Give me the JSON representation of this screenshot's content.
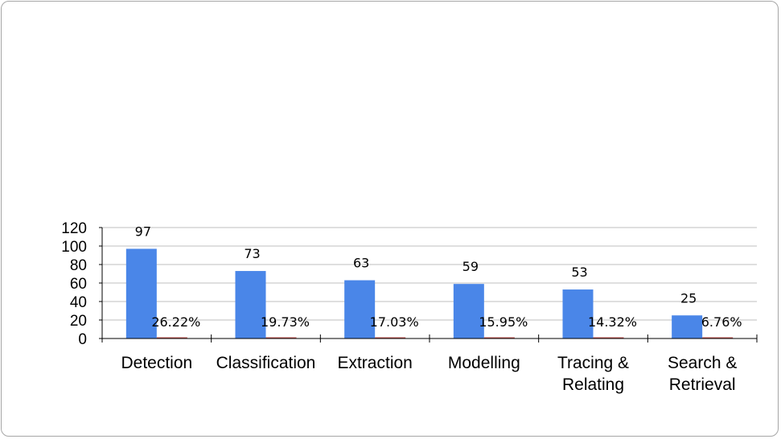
{
  "chart_data": {
    "type": "bar",
    "categories": [
      [
        "Detection"
      ],
      [
        "Classification"
      ],
      [
        "Extraction"
      ],
      [
        "Modelling"
      ],
      [
        "Tracing &",
        "Relating"
      ],
      [
        "Search &",
        "Retrieval"
      ]
    ],
    "series": [
      {
        "values": [
          97,
          73,
          63,
          59,
          53,
          25
        ],
        "labels": [
          "97",
          "73",
          "63",
          "59",
          "53",
          "25"
        ],
        "color": "#4a86e8"
      },
      {
        "values": [
          0.2622,
          0.1973,
          0.1703,
          0.1595,
          0.1432,
          0.0676
        ],
        "labels": [
          "26.22%",
          "19.73%",
          "17.03%",
          "15.95%",
          "14.32%",
          "6.76%"
        ],
        "color": "#c0504d"
      }
    ],
    "yticks": [
      "0",
      "20",
      "40",
      "60",
      "80",
      "100",
      "120"
    ],
    "ylim": [
      0,
      120
    ],
    "grid": true,
    "legend": "none"
  }
}
